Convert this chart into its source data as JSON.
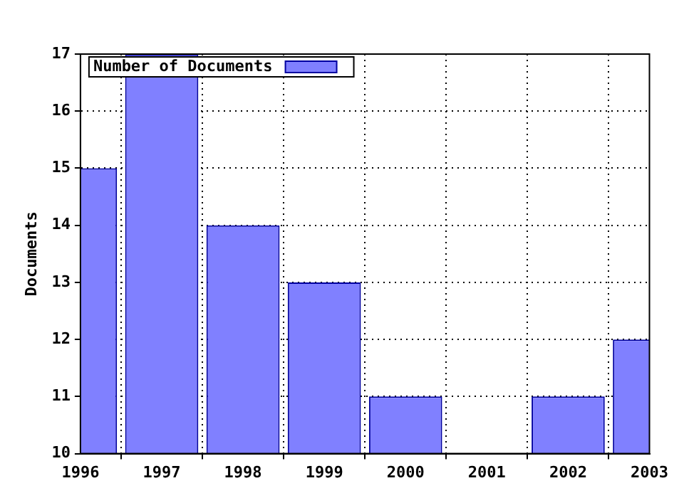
{
  "chart_data": {
    "type": "bar",
    "x": [
      1996,
      1997,
      1998,
      1999,
      2000,
      2001,
      2002,
      2003
    ],
    "series": [
      {
        "name": "Number of Documents",
        "color": "#8080ff",
        "values": [
          15,
          17,
          14,
          13,
          11,
          null,
          11,
          12
        ]
      }
    ],
    "ylabel": "Documents",
    "xlim": [
      1996,
      2003
    ],
    "xticks": [
      1996,
      1997,
      1998,
      1999,
      2000,
      2001,
      2002,
      2003
    ],
    "ylim": [
      10,
      17
    ],
    "yticks": [
      10,
      11,
      12,
      13,
      14,
      15,
      16,
      17
    ],
    "grid": true,
    "legend": "top left"
  }
}
